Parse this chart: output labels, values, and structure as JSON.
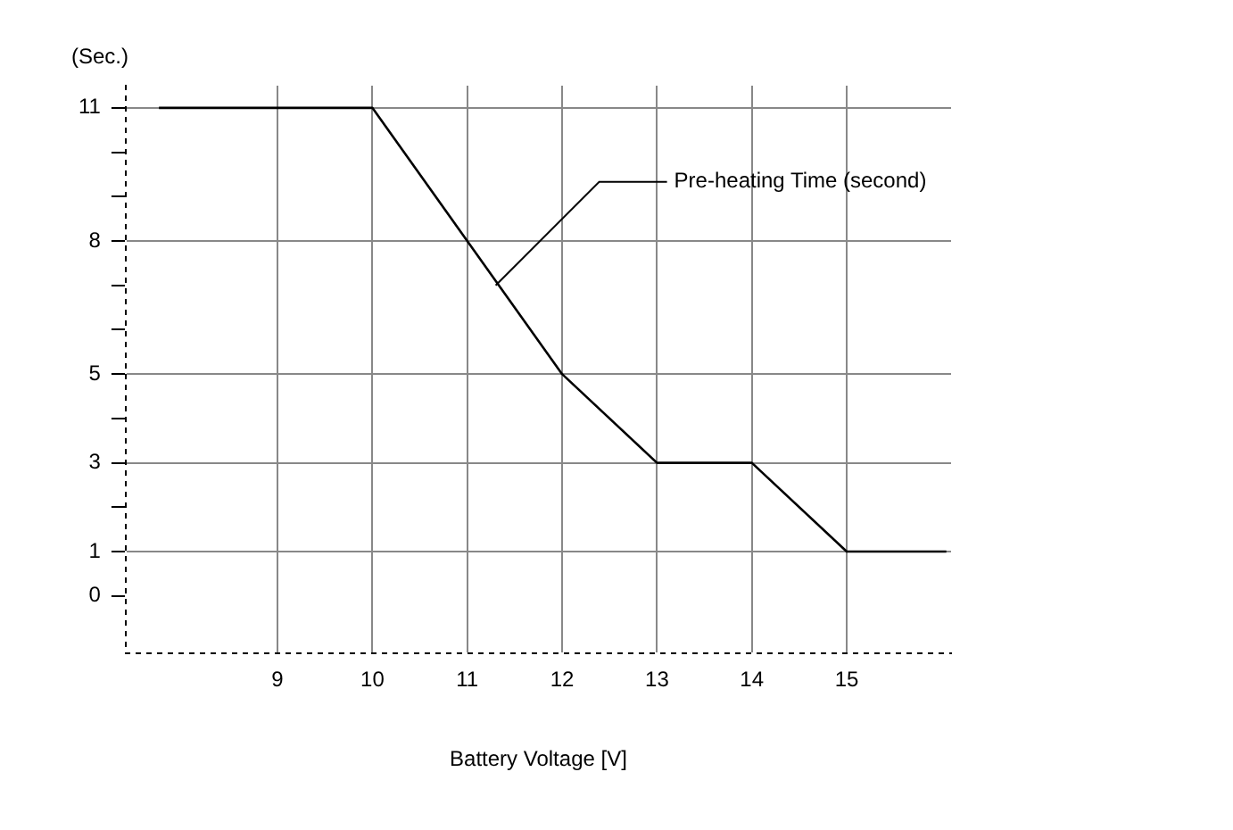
{
  "chart_data": {
    "type": "line",
    "ylabel": "(Sec.)",
    "xlabel": "Battery Voltage [V]",
    "x": [
      7.75,
      10,
      11,
      12,
      13,
      14,
      15,
      16.05
    ],
    "series": [
      {
        "color": "#000000",
        "values": [
          11,
          11,
          8,
          5,
          3,
          3,
          1,
          1
        ]
      }
    ],
    "xlim": [
      7.4,
      16.1
    ],
    "xticks": [
      9,
      10,
      11,
      12,
      13,
      14,
      15
    ],
    "ylim": [
      -1.3,
      11.5
    ],
    "yticks": [
      0,
      1,
      {
        "value": 2,
        "label": null
      },
      3,
      {
        "value": 4,
        "label": null
      },
      5,
      {
        "value": 6,
        "label": null
      },
      {
        "value": 7,
        "label": null
      },
      8,
      {
        "value": 9,
        "label": null
      },
      {
        "value": 10,
        "label": null
      },
      11
    ],
    "grid": true,
    "legend": false,
    "marker": "none",
    "line_style": "solid",
    "annotations": [
      {
        "text": "Pre-heating Time (second)",
        "x": 11.3,
        "y": 7
      }
    ]
  }
}
